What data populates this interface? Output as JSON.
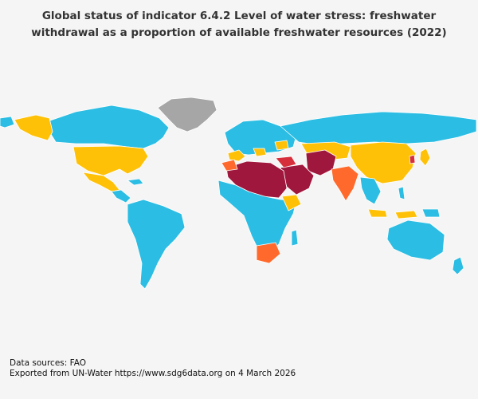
{
  "title": "Global status of indicator 6.4.2 Level of water stress: freshwater withdrawal as a proportion of available freshwater resources (2022)",
  "footer": {
    "sources": "Data sources: FAO",
    "exported": "Exported from UN-Water https://www.sdg6data.org on 4 March 2026"
  },
  "colors": {
    "no_stress": "#2bbde3",
    "low": "#ffc107",
    "medium": "#ff6a2c",
    "high": "#d62f3b",
    "critical": "#a0173d",
    "no_data": "#a6a6a6"
  }
}
